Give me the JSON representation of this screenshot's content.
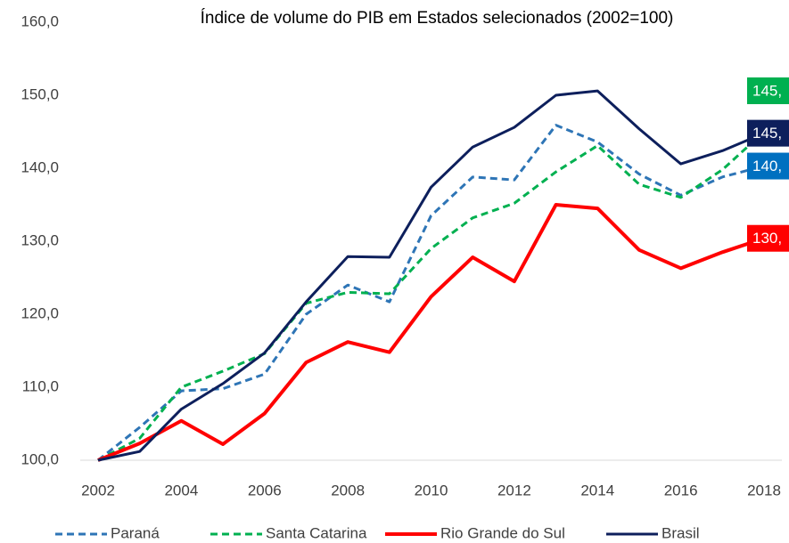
{
  "chart_data": {
    "type": "line",
    "title": "Índice de volume do PIB em Estados selecionados (2002=100)",
    "x": [
      2002,
      2003,
      2004,
      2005,
      2006,
      2007,
      2008,
      2009,
      2010,
      2011,
      2012,
      2013,
      2014,
      2015,
      2016,
      2017,
      2018
    ],
    "xlim": [
      2002,
      2018
    ],
    "xticks": [
      2002,
      2004,
      2006,
      2008,
      2010,
      2012,
      2014,
      2016,
      2018
    ],
    "ylim": [
      100,
      160
    ],
    "yticks": [
      {
        "value": 100,
        "label": "100,0"
      },
      {
        "value": 110,
        "label": "110,0"
      },
      {
        "value": 120,
        "label": "120,0"
      },
      {
        "value": 130,
        "label": "130,0"
      },
      {
        "value": 140,
        "label": "140,0"
      },
      {
        "value": 150,
        "label": "150,0"
      },
      {
        "value": 160,
        "label": "160,0"
      }
    ],
    "series": [
      {
        "name": "Paraná",
        "color": "#2e75b6",
        "dash": true,
        "values": [
          100,
          104.5,
          109.5,
          109.8,
          111.8,
          120,
          124,
          121.7,
          133.5,
          138.8,
          138.4,
          145.9,
          143.6,
          139.2,
          136.3,
          138.8,
          140.3
        ],
        "value_labels": [
          null,
          null,
          null,
          null,
          null,
          null,
          null,
          null,
          null,
          null,
          null,
          null,
          null,
          null,
          null,
          null,
          "140,"
        ],
        "label_color": "#0070c0"
      },
      {
        "name": "Santa Catarina",
        "color": "#00b050",
        "dash": true,
        "values": [
          100,
          103,
          110,
          112.2,
          114.6,
          121.5,
          123,
          122.8,
          129,
          133.2,
          135.2,
          139.5,
          143.1,
          137.8,
          136,
          139.8,
          145
        ],
        "value_labels": [
          null,
          null,
          null,
          null,
          null,
          null,
          null,
          null,
          null,
          null,
          null,
          null,
          null,
          null,
          null,
          null,
          "145,"
        ],
        "label_color": "#00b050"
      },
      {
        "name": "Rio Grande do Sul",
        "color": "#ff0000",
        "dash": false,
        "values": [
          100,
          102.3,
          105.4,
          102.2,
          106.4,
          113.4,
          116.2,
          114.8,
          122.4,
          127.8,
          124.5,
          135,
          134.5,
          128.8,
          126.3,
          128.5,
          130.4
        ],
        "value_labels": [
          null,
          null,
          null,
          null,
          null,
          null,
          null,
          null,
          null,
          null,
          null,
          null,
          null,
          null,
          null,
          null,
          "130,"
        ],
        "label_color": "#ff0000"
      },
      {
        "name": "Brasil",
        "color": "#0d1f5c",
        "dash": false,
        "values": [
          100,
          101.2,
          107,
          110.5,
          114.7,
          121.7,
          127.9,
          127.8,
          137.4,
          142.9,
          145.6,
          150,
          150.6,
          145.4,
          140.6,
          142.4,
          144.8
        ],
        "value_labels": [
          null,
          null,
          null,
          null,
          null,
          null,
          null,
          null,
          null,
          null,
          null,
          null,
          null,
          null,
          null,
          null,
          "145,"
        ],
        "label_color": "#0d1f5c"
      }
    ]
  }
}
